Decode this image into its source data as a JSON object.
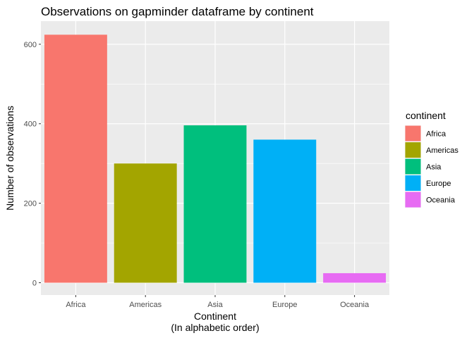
{
  "chart_data": {
    "type": "bar",
    "title": "Observations on gapminder dataframe by continent",
    "xlabel": [
      "Continent",
      "(In alphabetic order)"
    ],
    "ylabel": "Number of observations",
    "categories": [
      "Africa",
      "Americas",
      "Asia",
      "Europe",
      "Oceania"
    ],
    "values": [
      624,
      300,
      396,
      360,
      24
    ],
    "colors": [
      "#F8766D",
      "#A3A500",
      "#00BF7D",
      "#00B0F6",
      "#E76BF3"
    ],
    "ylim": [
      0,
      655
    ],
    "yticks": [
      0,
      200,
      400,
      600
    ],
    "grid": true,
    "legend": {
      "title": "continent",
      "placement": "right",
      "entries": [
        "Africa",
        "Americas",
        "Asia",
        "Europe",
        "Oceania"
      ]
    }
  }
}
